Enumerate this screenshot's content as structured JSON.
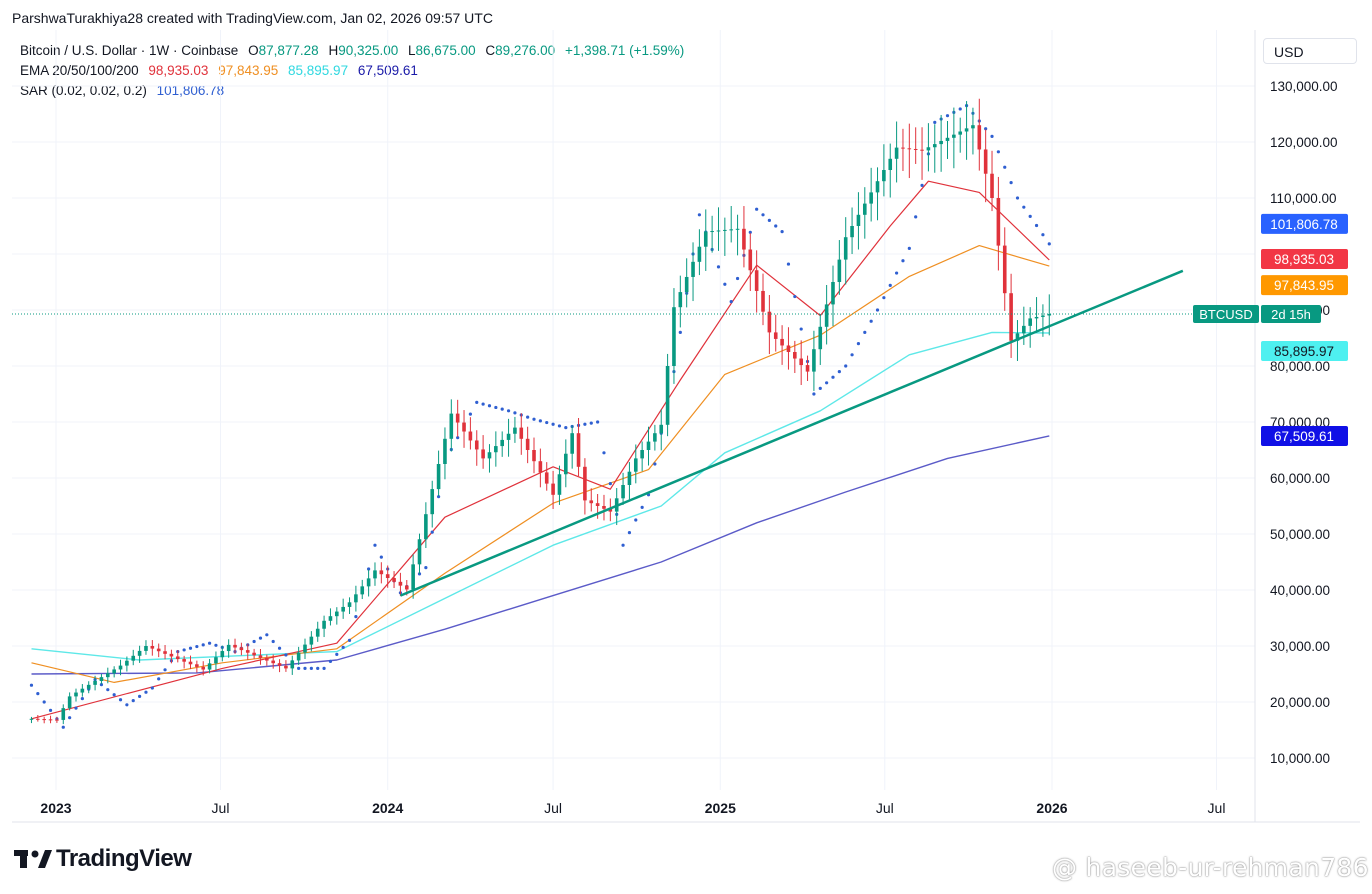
{
  "header": {
    "credit": "ParshwaTurakhiya28 created with TradingView.com, Jan 02, 2026 09:57 UTC"
  },
  "legend": {
    "symbol": "Bitcoin / U.S. Dollar · 1W · Coinbase",
    "open_label": "O",
    "open": "87,877.28",
    "high_label": "H",
    "high": "90,325.00",
    "low_label": "L",
    "low": "86,675.00",
    "close_label": "C",
    "close": "89,276.00",
    "change": "+1,398.71 (+1.59%)",
    "ema_label": "EMA 20/50/100/200",
    "ema20": "98,935.03",
    "ema50": "97,843.95",
    "ema100": "85,895.97",
    "ema200": "67,509.61",
    "sar_label": "SAR (0.02, 0.02, 0.2)",
    "sar": "101,806.78"
  },
  "currency_button": "USD",
  "brand": "TradingView",
  "watermark": "@ haseeb-ur-rehman786",
  "colors": {
    "up": "#089981",
    "down": "#e0323b",
    "ema20": "#e0323b",
    "ema50": "#ef8f22",
    "ema100": "#5ee8e8",
    "ema200": "#5b5bc8",
    "sar": "#2f5fd1",
    "trendline": "#089981",
    "grid": "#f0f3fa"
  },
  "chart_data": {
    "type": "candlestick",
    "title": "Bitcoin / U.S. Dollar · 1W · Coinbase",
    "ylim": [
      4000,
      136000
    ],
    "y_ticks": [
      "130,000.00",
      "120,000.00",
      "110,000.00",
      "100,000.00",
      "90,000.00",
      "80,000.00",
      "70,000.00",
      "60,000.00",
      "50,000.00",
      "40,000.00",
      "30,000.00",
      "20,000.00",
      "10,000.00"
    ],
    "y_tick_values": [
      130000,
      120000,
      110000,
      100000,
      90000,
      80000,
      70000,
      60000,
      50000,
      40000,
      30000,
      20000,
      10000
    ],
    "x_ticks": [
      {
        "label": "2023",
        "bold": true,
        "date": "2023-01-01"
      },
      {
        "label": "Jul",
        "bold": false,
        "date": "2023-07-01"
      },
      {
        "label": "2024",
        "bold": true,
        "date": "2024-01-01"
      },
      {
        "label": "Jul",
        "bold": false,
        "date": "2024-07-01"
      },
      {
        "label": "2025",
        "bold": true,
        "date": "2025-01-01"
      },
      {
        "label": "Jul",
        "bold": false,
        "date": "2025-07-01"
      },
      {
        "label": "2026",
        "bold": true,
        "date": "2026-01-01"
      },
      {
        "label": "Jul",
        "bold": false,
        "date": "2026-07-01"
      }
    ],
    "series": [
      {
        "name": "Bitcoin / U.S. Dollar",
        "kind": "weekly close (key points)",
        "x": [
          "2022-12-05",
          "2023-01-02",
          "2023-01-16",
          "2023-03-13",
          "2023-04-10",
          "2023-06-12",
          "2023-07-10",
          "2023-09-11",
          "2023-10-23",
          "2023-11-20",
          "2023-12-18",
          "2024-01-22",
          "2024-02-26",
          "2024-03-11",
          "2024-04-15",
          "2024-05-20",
          "2024-07-01",
          "2024-07-22",
          "2024-08-05",
          "2024-09-02",
          "2024-09-30",
          "2024-10-28",
          "2024-11-11",
          "2024-12-16",
          "2025-01-20",
          "2025-02-24",
          "2025-04-07",
          "2025-05-19",
          "2025-07-14",
          "2025-08-11",
          "2025-10-06",
          "2025-10-27",
          "2025-11-17",
          "2025-12-08",
          "2025-12-29"
        ],
        "values": [
          17000,
          16800,
          21000,
          26500,
          30000,
          25800,
          30200,
          26000,
          34500,
          37800,
          43500,
          40100,
          62500,
          71500,
          63500,
          69000,
          57000,
          68000,
          56000,
          54000,
          63500,
          69500,
          90500,
          104000,
          104500,
          86000,
          79000,
          103000,
          119000,
          118500,
          123000,
          110000,
          84500,
          88500,
          89276
        ]
      },
      {
        "name": "EMA 20",
        "x": [
          "2022-12-05",
          "2023-07-03",
          "2023-11-06",
          "2024-03-04",
          "2024-07-01",
          "2024-09-02",
          "2024-11-18",
          "2025-02-10",
          "2025-04-21",
          "2025-07-07",
          "2025-08-18",
          "2025-10-13",
          "2025-12-29"
        ],
        "values": [
          17000,
          26000,
          30500,
          53000,
          62000,
          58000,
          77500,
          98000,
          89000,
          105000,
          113000,
          111000,
          98935.03
        ]
      },
      {
        "name": "EMA 50",
        "x": [
          "2022-12-05",
          "2023-03-06",
          "2023-07-03",
          "2023-11-06",
          "2024-03-04",
          "2024-07-01",
          "2024-10-14",
          "2025-01-06",
          "2025-04-21",
          "2025-07-28",
          "2025-10-13",
          "2025-12-29"
        ],
        "values": [
          27000,
          23500,
          27000,
          29500,
          43000,
          55500,
          61500,
          78500,
          85500,
          96000,
          101500,
          97843.95
        ]
      },
      {
        "name": "EMA 100",
        "x": [
          "2022-12-05",
          "2023-04-03",
          "2023-11-06",
          "2024-03-04",
          "2024-07-01",
          "2024-10-28",
          "2025-01-06",
          "2025-04-21",
          "2025-07-28",
          "2025-10-27",
          "2025-12-29"
        ],
        "values": [
          29500,
          27500,
          29000,
          38500,
          48000,
          55000,
          64500,
          72000,
          82000,
          86000,
          85895.97
        ]
      },
      {
        "name": "EMA 200",
        "x": [
          "2022-12-05",
          "2023-06-05",
          "2023-11-06",
          "2024-03-04",
          "2024-07-01",
          "2024-10-28",
          "2025-02-10",
          "2025-05-19",
          "2025-09-08",
          "2025-12-29"
        ],
        "values": [
          25000,
          25200,
          27500,
          33000,
          39000,
          45000,
          52000,
          57500,
          63500,
          67509.61
        ]
      },
      {
        "name": "SAR",
        "kind": "dots",
        "x": [
          "2022-12-05",
          "2023-01-09",
          "2023-02-13",
          "2023-03-20",
          "2023-04-17",
          "2023-05-15",
          "2023-06-19",
          "2023-07-17",
          "2023-08-21",
          "2023-09-25",
          "2023-10-23",
          "2023-11-20",
          "2023-12-18",
          "2024-01-15",
          "2024-02-12",
          "2024-03-04",
          "2024-04-08",
          "2024-05-13",
          "2024-06-10",
          "2024-07-15",
          "2024-08-19",
          "2024-09-16",
          "2024-10-14",
          "2024-11-11",
          "2024-12-09",
          "2025-01-13",
          "2025-02-10",
          "2025-03-10",
          "2025-04-14",
          "2025-05-19",
          "2025-06-23",
          "2025-07-28",
          "2025-08-25",
          "2025-09-29",
          "2025-10-27",
          "2025-11-24",
          "2025-12-29"
        ],
        "values": [
          23000,
          15500,
          24000,
          19500,
          22500,
          29000,
          30500,
          29000,
          32000,
          26000,
          26000,
          31000,
          48000,
          39500,
          44000,
          63000,
          73500,
          72000,
          70500,
          69000,
          70000,
          48000,
          57000,
          79000,
          107000,
          91500,
          108000,
          104000,
          75000,
          80000,
          90000,
          101000,
          123500,
          126500,
          121000,
          110000,
          101806.78
        ]
      },
      {
        "name": "Trendline",
        "kind": "line",
        "x": [
          "2024-01-15",
          "2026-05-25"
        ],
        "values": [
          39000,
          97000
        ]
      }
    ],
    "last_price": {
      "label": "BTCUSD",
      "countdown": "2d 15h",
      "value": 89276
    },
    "price_labels": [
      {
        "text": "101,806.78",
        "value": 101806.78,
        "color": "#2962ff"
      },
      {
        "text": "98,935.03",
        "value": 98935.03,
        "color": "#f23645"
      },
      {
        "text": "97,843.95",
        "value": 97843.95,
        "color": "#ff9800"
      },
      {
        "text": "85,895.97",
        "value": 85895.97,
        "color": "#4ef0f0"
      },
      {
        "text": "67,509.61",
        "value": 67509.61,
        "color": "#1010e6"
      }
    ]
  }
}
